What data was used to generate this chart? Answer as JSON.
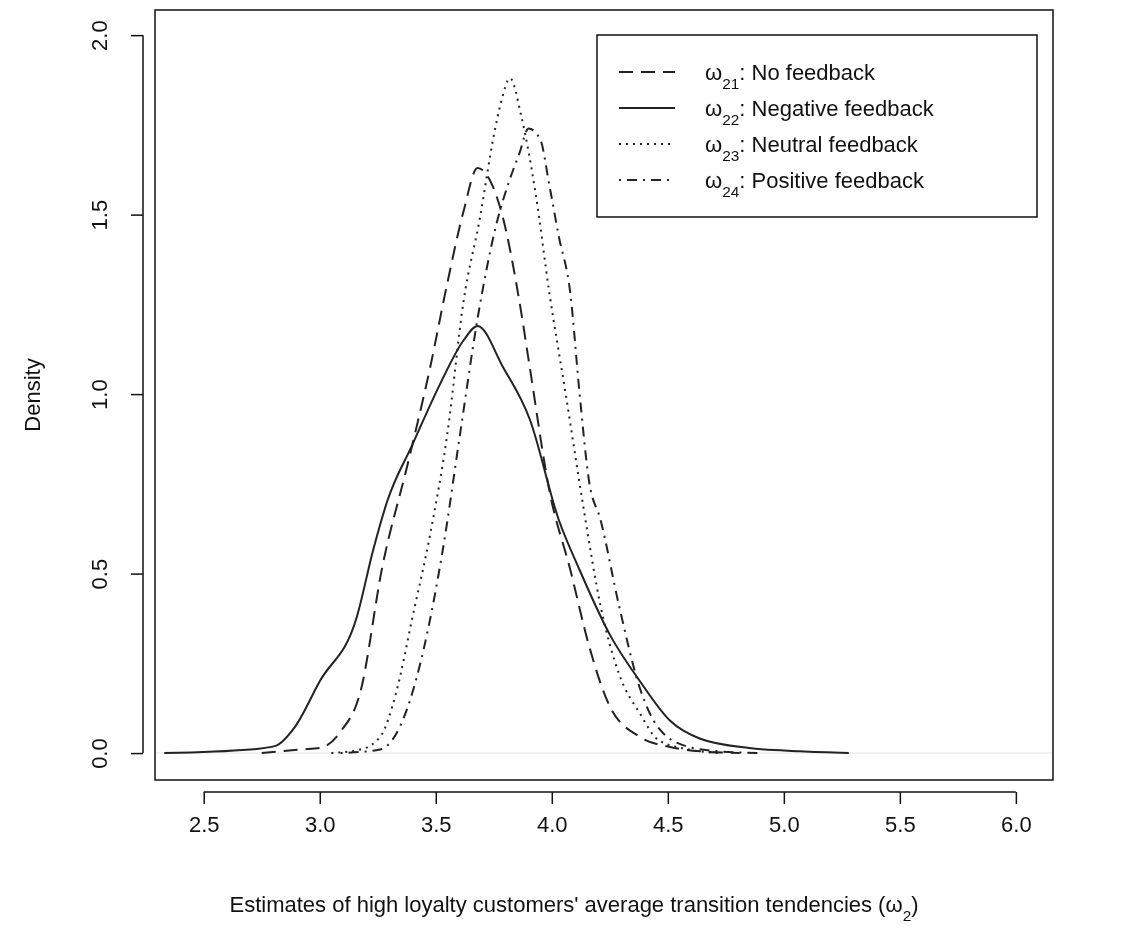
{
  "chart_data": {
    "type": "line",
    "xlabel": "Estimates of high loyalty customers' average transition tendencies (ω$_{2}$)",
    "ylabel": "Density",
    "xlim": [
      2.29,
      6.16
    ],
    "ylim": [
      -0.075,
      2.07
    ],
    "xticks": [
      2.5,
      {
        "value": 3,
        "label": "3.0"
      },
      3.5,
      {
        "value": 4,
        "label": "4.0"
      },
      4.5,
      {
        "value": 5,
        "label": "5.0"
      },
      5.5,
      {
        "value": 6,
        "label": "6.0"
      }
    ],
    "yticks": [
      {
        "value": 0,
        "label": "0.0"
      },
      0.5,
      {
        "value": 1,
        "label": "1.0"
      },
      1.5,
      {
        "value": 2,
        "label": "2.0"
      }
    ],
    "grid": false,
    "legend": "top right",
    "marker": "none",
    "ref_lines": [
      {
        "axis": "y",
        "value": 0,
        "label": null,
        "color": "#eeeeee"
      }
    ],
    "series": [
      {
        "name": "ω$_{21}$: No feedback",
        "color": "#222222",
        "line_style": "dashed",
        "x": [
          2.75,
          2.92,
          3.0,
          3.09,
          3.175,
          3.27,
          3.377,
          3.476,
          3.55,
          3.62,
          3.68,
          3.73,
          3.79,
          3.86,
          3.905,
          3.99,
          4.08,
          4.16,
          4.25,
          4.38,
          4.51,
          4.64,
          4.81
        ],
        "values": [
          0,
          0.01,
          0.014,
          0.06,
          0.17,
          0.52,
          0.8,
          1.075,
          1.31,
          1.51,
          1.63,
          1.6,
          1.49,
          1.26,
          1.075,
          0.73,
          0.51,
          0.3,
          0.13,
          0.045,
          0.017,
          0.005,
          0
        ]
      },
      {
        "name": "ω$_{22}$: Negative feedback",
        "color": "#222222",
        "line_style": "solid",
        "x": [
          2.33,
          2.7,
          2.81,
          2.89,
          3.0,
          3.16,
          3.23,
          3.29,
          3.4,
          3.52,
          3.62,
          3.68,
          3.79,
          3.905,
          4.03,
          4.12,
          4.25,
          4.38,
          4.51,
          4.64,
          4.85,
          5.07,
          5.28
        ],
        "values": [
          0,
          0.01,
          0.02,
          0.07,
          0.2,
          0.38,
          0.565,
          0.7,
          0.86,
          1.03,
          1.15,
          1.19,
          1.075,
          0.93,
          0.65,
          0.51,
          0.33,
          0.2,
          0.09,
          0.04,
          0.014,
          0.005,
          0
        ]
      },
      {
        "name": "ω$_{23}$: Neutral feedback",
        "color": "#222222",
        "line_style": "dotted",
        "x": [
          3.05,
          3.175,
          3.26,
          3.33,
          3.4,
          3.476,
          3.55,
          3.62,
          3.69,
          3.75,
          3.78,
          3.82,
          3.87,
          3.93,
          3.99,
          4.06,
          4.14,
          4.21,
          4.29,
          4.38,
          4.46,
          4.59,
          4.72
        ],
        "values": [
          0,
          0.01,
          0.045,
          0.17,
          0.38,
          0.61,
          0.89,
          1.26,
          1.49,
          1.72,
          1.81,
          1.88,
          1.77,
          1.56,
          1.28,
          1.0,
          0.67,
          0.41,
          0.22,
          0.11,
          0.036,
          0.01,
          0
        ]
      },
      {
        "name": "ω$_{24}$: Positive feedback",
        "color": "#222222",
        "line_style": "dotdash",
        "x": [
          3.09,
          3.26,
          3.35,
          3.4,
          3.53,
          3.605,
          3.68,
          3.76,
          3.82,
          3.86,
          3.9,
          3.95,
          3.99,
          4.03,
          4.08,
          4.12,
          4.16,
          4.21,
          4.29,
          4.38,
          4.46,
          4.59,
          4.72,
          4.9
        ],
        "values": [
          0,
          0.01,
          0.08,
          0.17,
          0.565,
          0.89,
          1.21,
          1.47,
          1.6,
          1.67,
          1.74,
          1.71,
          1.58,
          1.44,
          1.28,
          1.0,
          0.76,
          0.65,
          0.41,
          0.18,
          0.07,
          0.017,
          0.005,
          0
        ]
      }
    ]
  }
}
